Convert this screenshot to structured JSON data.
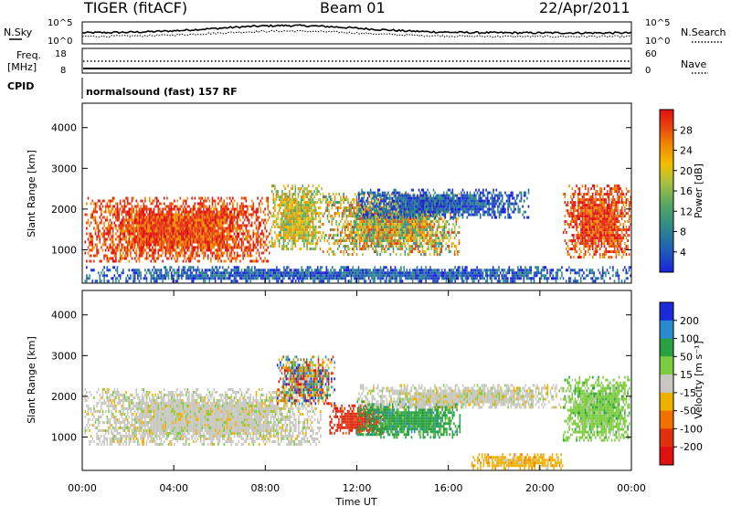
{
  "header": {
    "radar": "TIGER (fitACF)",
    "beam": "Beam 01",
    "date": "22/Apr/2011"
  },
  "noise_panel": {
    "left_label": "N.Sky",
    "right_label": "N.Search",
    "left_ticks": [
      "10^5",
      "10^0"
    ],
    "right_ticks": [
      "10^5",
      "10^0"
    ]
  },
  "freq_panel": {
    "left_label_1": "Freq.",
    "left_label_2": "[MHz]",
    "right_label": "Nave",
    "left_ticks": [
      "18",
      "8"
    ],
    "right_ticks": [
      "60",
      "0"
    ]
  },
  "cpid": {
    "label": "CPID",
    "value": "normalsound (fast) 157 RF"
  },
  "chart_data": [
    {
      "type": "heatmap",
      "panel": "power",
      "ylabel": "Slant Range [km]",
      "xlabel": "",
      "ylim": [
        180,
        4600
      ],
      "xlim": [
        0,
        24
      ],
      "y_ticks": [
        "1000",
        "2000",
        "3000",
        "4000"
      ],
      "colorbar_label": "Power [dB]",
      "colorbar_ticks": [
        "4",
        "8",
        "12",
        "16",
        "20",
        "24",
        "28"
      ],
      "colorbar_colors": [
        "#1a22d8",
        "#1f5fb8",
        "#2f8a88",
        "#58a860",
        "#a8c040",
        "#f0c000",
        "#f08a00",
        "#e84010",
        "#e01010"
      ],
      "regions": [
        {
          "t": [
            0.1,
            8.2
          ],
          "r": [
            700,
            2300
          ],
          "level": "high"
        },
        {
          "t": [
            8.2,
            10.5
          ],
          "r": [
            1000,
            2600
          ],
          "level": "mid"
        },
        {
          "t": [
            10.5,
            16.5
          ],
          "r": [
            900,
            2400
          ],
          "level": "mixed"
        },
        {
          "t": [
            12.0,
            19.5
          ],
          "r": [
            1800,
            2500
          ],
          "level": "low"
        },
        {
          "t": [
            21.0,
            24.0
          ],
          "r": [
            800,
            2600
          ],
          "level": "high"
        },
        {
          "t": [
            0.1,
            24.0
          ],
          "r": [
            250,
            600
          ],
          "level": "low"
        }
      ]
    },
    {
      "type": "heatmap",
      "panel": "velocity",
      "ylabel": "Slant Range [km]",
      "xlabel": "Time UT",
      "ylim": [
        180,
        4600
      ],
      "xlim": [
        0,
        24
      ],
      "y_ticks": [
        "1000",
        "2000",
        "3000",
        "4000"
      ],
      "x_ticks": [
        "00:00",
        "04:00",
        "08:00",
        "12:00",
        "16:00",
        "20:00",
        "00:00"
      ],
      "colorbar_label": "Velocity [m s⁻¹]",
      "colorbar_ticks": [
        "200",
        "100",
        "50",
        "15",
        "-15",
        "-50",
        "-100",
        "-200"
      ],
      "colorbar_colors": [
        "#1a2ad8",
        "#2a8ad0",
        "#2aa040",
        "#7ccc40",
        "#c8c8c0",
        "#f0b000",
        "#f07000",
        "#e03010",
        "#e01010"
      ],
      "regions": [
        {
          "t": [
            0.1,
            10.5
          ],
          "r": [
            800,
            2200
          ],
          "velocity": "near-zero"
        },
        {
          "t": [
            8.5,
            11.0
          ],
          "r": [
            1800,
            3000
          ],
          "velocity": "mixed"
        },
        {
          "t": [
            10.8,
            13.2
          ],
          "r": [
            1100,
            1800
          ],
          "velocity": "-200"
        },
        {
          "t": [
            12.0,
            16.5
          ],
          "r": [
            1000,
            1900
          ],
          "velocity": "50"
        },
        {
          "t": [
            12.0,
            21.0
          ],
          "r": [
            1700,
            2300
          ],
          "velocity": "near-zero"
        },
        {
          "t": [
            17.0,
            21.0
          ],
          "r": [
            250,
            600
          ],
          "velocity": "-50"
        },
        {
          "t": [
            21.0,
            24.0
          ],
          "r": [
            900,
            2500
          ],
          "velocity": "15"
        }
      ]
    }
  ]
}
